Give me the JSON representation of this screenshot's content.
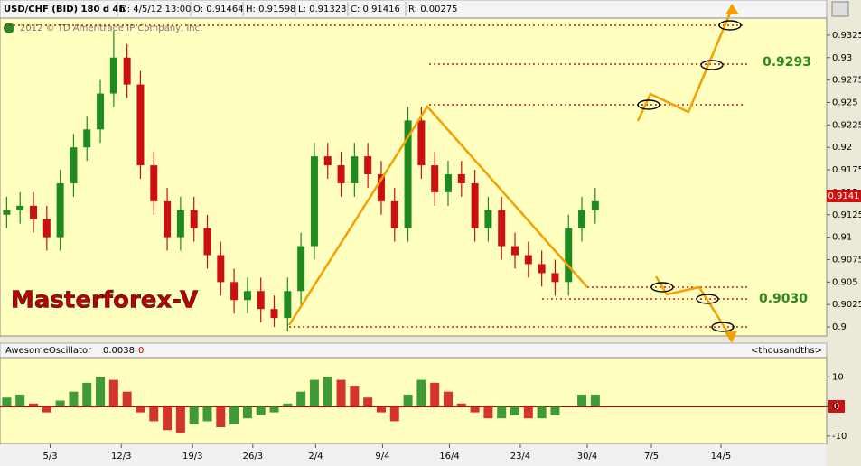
{
  "chart_data": {
    "type": "candlestick",
    "title": "USD/CHF (BID) 180 d 4h",
    "info": [
      "D: 4/5/12 13:00",
      "O: 0.91464",
      "H: 0.91598",
      "L: 0.91323",
      "C: 0.91416",
      "R: 0.00275"
    ],
    "copyright": "2012 © TD Ameritrade IP Company, Inc.",
    "watermark": "Masterforex-V",
    "annotations": [
      "0.9293",
      "0.9030"
    ],
    "last_price_label": "0.9141",
    "open": [
      0.9125,
      0.913,
      0.9135,
      0.912,
      0.91,
      0.916,
      0.92,
      0.922,
      0.926,
      0.93,
      0.927,
      0.918,
      0.914,
      0.91,
      0.913,
      0.911,
      0.908,
      0.905,
      0.903,
      0.904,
      0.902,
      0.901,
      0.904,
      0.909,
      0.919,
      0.918,
      0.916,
      0.919,
      0.917,
      0.914,
      0.911,
      0.923,
      0.918,
      0.915,
      0.917,
      0.916,
      0.911,
      0.913,
      0.909,
      0.908,
      0.907,
      0.906,
      0.905,
      0.911,
      0.913
    ],
    "high": [
      0.9145,
      0.915,
      0.915,
      0.9135,
      0.9175,
      0.9215,
      0.9235,
      0.9275,
      0.933,
      0.9315,
      0.9285,
      0.9195,
      0.9155,
      0.9145,
      0.9145,
      0.9125,
      0.9095,
      0.9065,
      0.9055,
      0.9055,
      0.9035,
      0.9055,
      0.9105,
      0.9205,
      0.9205,
      0.9195,
      0.9205,
      0.9205,
      0.9185,
      0.9155,
      0.9245,
      0.9245,
      0.9195,
      0.9185,
      0.9185,
      0.9175,
      0.9145,
      0.9145,
      0.9105,
      0.9095,
      0.9085,
      0.9075,
      0.9125,
      0.9145,
      0.9155
    ],
    "low": [
      0.911,
      0.9115,
      0.9105,
      0.9085,
      0.9085,
      0.9145,
      0.9185,
      0.9205,
      0.9245,
      0.9255,
      0.9165,
      0.9125,
      0.9085,
      0.9085,
      0.9095,
      0.9065,
      0.9035,
      0.9015,
      0.9015,
      0.9005,
      0.9,
      0.8995,
      0.9025,
      0.9075,
      0.9165,
      0.9145,
      0.9145,
      0.9155,
      0.9125,
      0.9095,
      0.9095,
      0.9165,
      0.9135,
      0.9135,
      0.9145,
      0.9095,
      0.9095,
      0.9075,
      0.9065,
      0.9055,
      0.9045,
      0.9035,
      0.9035,
      0.9095,
      0.9115
    ],
    "close": [
      0.913,
      0.9135,
      0.912,
      0.91,
      0.916,
      0.92,
      0.922,
      0.926,
      0.93,
      0.927,
      0.918,
      0.914,
      0.91,
      0.913,
      0.911,
      0.908,
      0.905,
      0.903,
      0.904,
      0.902,
      0.901,
      0.904,
      0.909,
      0.919,
      0.918,
      0.916,
      0.919,
      0.917,
      0.914,
      0.911,
      0.923,
      0.918,
      0.915,
      0.917,
      0.916,
      0.911,
      0.913,
      0.909,
      0.908,
      0.907,
      0.906,
      0.905,
      0.911,
      0.913,
      0.914
    ],
    "colors": {
      "up": "#1f8a1f",
      "down": "#cc1010"
    },
    "ylim": [
      0.899,
      0.9344
    ],
    "yticks": [
      0.9,
      0.9025,
      0.905,
      0.9075,
      0.91,
      0.9125,
      0.915,
      0.9175,
      0.92,
      0.9225,
      0.925,
      0.9275,
      0.93,
      0.9325
    ],
    "xlim": [
      -0.5,
      61.3
    ],
    "xticks": [
      {
        "value": 3.25,
        "label": "5/3"
      },
      {
        "value": 8.57,
        "label": "12/3"
      },
      {
        "value": 13.9,
        "label": "19/3"
      },
      {
        "value": 18.4,
        "label": "26/3"
      },
      {
        "value": 23.1,
        "label": "2/4"
      },
      {
        "value": 28.1,
        "label": "9/4"
      },
      {
        "value": 33.1,
        "label": "16/4"
      },
      {
        "value": 38.4,
        "label": "23/4"
      },
      {
        "value": 43.4,
        "label": "30/4"
      },
      {
        "value": 48.2,
        "label": "7/5"
      },
      {
        "value": 53.4,
        "label": "14/5"
      }
    ],
    "oscillator": {
      "type": "bar",
      "name": "AwesomeOscillator",
      "value_label": "0.0038",
      "zero_label": "0",
      "units": "<thousandths>",
      "last_label": "0",
      "values": [
        3,
        4,
        1,
        -2,
        2,
        5,
        8,
        10,
        9,
        5,
        -2,
        -5,
        -8,
        -9,
        -6,
        -5,
        -7,
        -6,
        -4,
        -3,
        -2,
        1,
        5,
        9,
        10,
        9,
        7,
        3,
        -2,
        -5,
        4,
        9,
        8,
        5,
        1,
        -2,
        -4,
        -4,
        -3,
        -4,
        -4,
        -3,
        0,
        4,
        4
      ],
      "ylim": [
        -12.8,
        16.5
      ],
      "yticks": [
        -10,
        0,
        10
      ]
    }
  }
}
